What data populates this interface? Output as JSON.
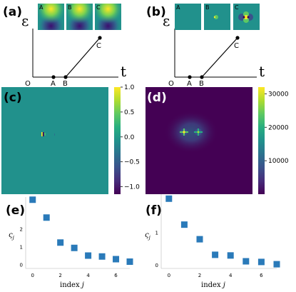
{
  "panels": {
    "a": {
      "letter": "(a)",
      "y_symbol": "ε",
      "x_symbol": "t",
      "points": [
        "O",
        "A",
        "B",
        "C"
      ],
      "insets": [
        "A",
        "B",
        "C"
      ]
    },
    "b": {
      "letter": "(b)",
      "y_symbol": "ε",
      "x_symbol": "t",
      "points": [
        "O",
        "A",
        "B",
        "C"
      ],
      "insets": [
        "A",
        "B",
        "C"
      ]
    },
    "c": {
      "letter": "(c)",
      "colorbar_ticks": [
        "1.0",
        "0.5",
        "0.0",
        "−0.5",
        "−1.0"
      ],
      "colorbar_range": [
        -1.15,
        1.0
      ]
    },
    "d": {
      "letter": "(d)",
      "colorbar_ticks": [
        "30000",
        "20000",
        "10000"
      ],
      "colorbar_range": [
        0,
        32000
      ]
    }
  },
  "chart_data": [
    {
      "type": "scatter",
      "panel": "e",
      "letter": "(e)",
      "xlabel": "index j",
      "ylabel": "ς_j",
      "xlabel_main": "index ",
      "xlabel_var": "j",
      "ylabel_main": "ς",
      "ylabel_sub": "j",
      "x_ticks": [
        "0",
        "2",
        "4",
        "6"
      ],
      "y_ticks": [
        "0",
        "1",
        "2"
      ],
      "xlim": [
        -0.5,
        7
      ],
      "ylim": [
        -0.2,
        3.8
      ],
      "color": "#2a7ab9",
      "x": [
        0,
        1,
        2,
        3,
        4,
        5,
        6,
        7
      ],
      "y": [
        3.65,
        2.65,
        1.25,
        0.95,
        0.52,
        0.47,
        0.32,
        0.18
      ]
    },
    {
      "type": "scatter",
      "panel": "f",
      "letter": "(f)",
      "xlabel": "index j",
      "ylabel": "ς_j",
      "xlabel_main": "index ",
      "xlabel_var": "j",
      "ylabel_main": "ς",
      "ylabel_sub": "j",
      "x_ticks": [
        "0",
        "2",
        "4",
        "6"
      ],
      "y_ticks": [
        "0",
        "1"
      ],
      "xlim": [
        -0.5,
        7
      ],
      "ylim": [
        -0.1,
        2.1
      ],
      "color": "#2a7ab9",
      "x": [
        0,
        1,
        2,
        3,
        4,
        5,
        6,
        7
      ],
      "y": [
        2.05,
        1.25,
        0.8,
        0.32,
        0.3,
        0.12,
        0.1,
        0.03
      ]
    }
  ]
}
